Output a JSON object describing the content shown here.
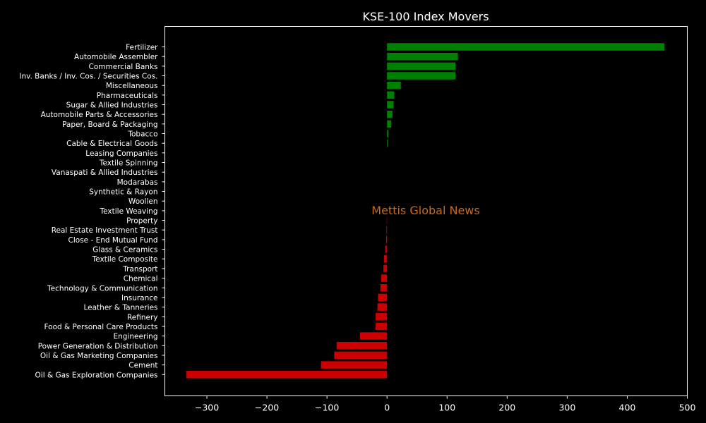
{
  "chart_data": {
    "type": "bar",
    "orientation": "horizontal",
    "title": "KSE-100 Index Movers",
    "watermark": "Mettis Global News",
    "xlim": [
      -370,
      500
    ],
    "xticks": [
      -300,
      -200,
      -100,
      0,
      100,
      200,
      300,
      400,
      500
    ],
    "xtick_labels": [
      "−300",
      "−200",
      "−100",
      "0",
      "100",
      "200",
      "300",
      "400",
      "500"
    ],
    "colors": {
      "positive": "#008000",
      "negative": "#cc0000",
      "background": "#000000",
      "axis": "#ffffff",
      "watermark": "#c8691a"
    },
    "grid": false,
    "categories": [
      "Fertilizer",
      "Automobile Assembler",
      "Commercial Banks",
      "Inv. Banks / Inv. Cos. / Securities Cos.",
      "Miscellaneous",
      "Pharmaceuticals",
      "Sugar & Allied Industries",
      "Automobile Parts & Accessories",
      "Paper, Board & Packaging",
      "Tobacco",
      "Cable & Electrical Goods",
      "Leasing Companies",
      "Textile Spinning",
      "Vanaspati & Allied Industries",
      "Modarabas",
      "Synthetic & Rayon",
      "Woollen",
      "Textile Weaving",
      "Property",
      "Real Estate Investment Trust",
      "Close - End Mutual Fund",
      "Glass & Ceramics",
      "Textile Composite",
      "Transport",
      "Chemical",
      "Technology & Communication",
      "Insurance",
      "Leather & Tanneries",
      "Refinery",
      "Food & Personal Care Products",
      "Engineering",
      "Power Generation & Distribution",
      "Oil & Gas Marketing Companies",
      "Cement",
      "Oil & Gas Exploration Companies"
    ],
    "values": [
      462,
      118,
      114,
      114,
      23,
      12,
      11,
      9,
      7,
      2.5,
      1.5,
      0,
      0,
      0,
      0,
      0,
      0,
      0,
      -0.5,
      -1,
      -1.5,
      -3,
      -5,
      -6,
      -10,
      -11,
      -15,
      -16,
      -19,
      -19,
      -45,
      -84,
      -88,
      -110,
      -334
    ]
  }
}
